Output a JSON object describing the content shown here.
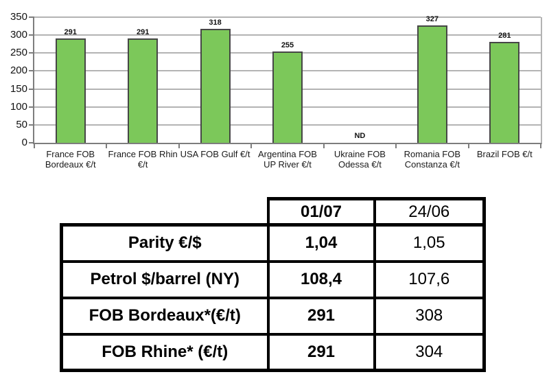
{
  "chart_data": {
    "type": "bar",
    "title": "",
    "xlabel": "",
    "ylabel": "",
    "categories": [
      "France FOB Bordeaux €/t",
      "France FOB Rhin €/t",
      "USA FOB Gulf €/t",
      "Argentina FOB UP River €/t",
      "Ukraine FOB Odessa €/t",
      "Romania FOB Constanza €/t",
      "Brazil FOB €/t"
    ],
    "values": [
      291,
      291,
      318,
      255,
      "ND",
      327,
      281
    ],
    "no_data_label": "ND",
    "ylim": [
      0,
      350
    ],
    "ytick_step": 50,
    "grid": true,
    "legend": "none",
    "colors": {
      "bar": "#7cc85a",
      "bar_border": "#464646",
      "grid": "#b3b3b3",
      "axis": "#7d7d7d"
    }
  },
  "table": {
    "header": {
      "current": "01/07",
      "previous": "24/06"
    },
    "rows": [
      {
        "label": "Parity €/$",
        "current": "1,04",
        "previous": "1,05"
      },
      {
        "label": "Petrol $/barrel (NY)",
        "current": "108,4",
        "previous": "107,6"
      },
      {
        "label": "FOB Bordeaux*(€/t)",
        "current": "291",
        "previous": "308"
      },
      {
        "label": "FOB Rhine* (€/t)",
        "current": "291",
        "previous": "304"
      }
    ]
  }
}
